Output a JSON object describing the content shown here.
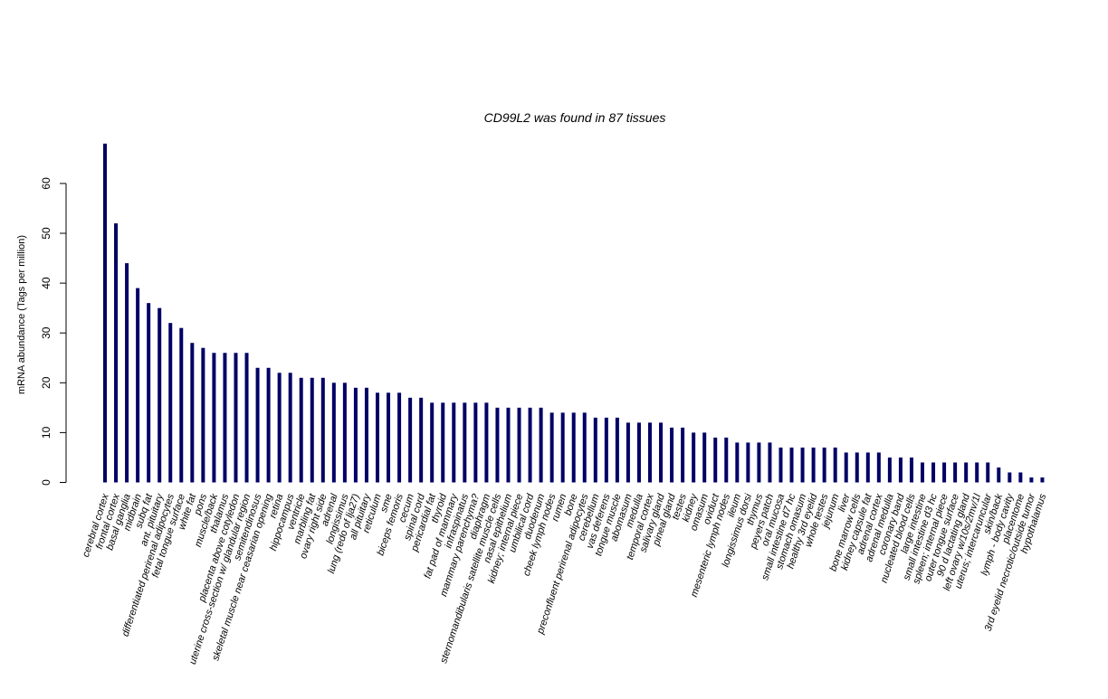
{
  "chart_data": {
    "type": "bar",
    "title": "CD99L2  was found in  87  tissues",
    "xlabel": "",
    "ylabel": "mRNA abundance (Tags per million)",
    "ylim": [
      0,
      68
    ],
    "yticks": [
      0,
      10,
      20,
      30,
      40,
      50,
      60
    ],
    "grid": false,
    "bar_color": "#000066",
    "categories": [
      "cerebral cortex",
      "frontal cortex",
      "basal ganglia",
      "midbrain",
      "subq fat",
      "ant. pituitary",
      "differentiated perirenal adipocytes",
      "fetal tongue surface",
      "white fat",
      "pons",
      "muscle/back",
      "thalamus",
      "placenta above cotyledon",
      "uterine cross-section w/ glandular region",
      "semitendinosus",
      "skeletal muscle near ceasarian opening",
      "retina",
      "hippocampus",
      "ventricle",
      "marbling fat",
      "ovary right side",
      "adrenal",
      "longissimus",
      "lung (redo of lja27)",
      "all pituitary",
      "reticulum",
      "sme",
      "biceps femoris",
      "cecum",
      "spinal cord",
      "pericardial fat",
      "thyroid",
      "fat pad of mammary",
      "infraspinatus",
      "mammary parenchyma?",
      "diaphragm",
      "sternomandibularis satellite muscle cells",
      "nasal epithelium",
      "kidney; internal piece",
      "umbilical cord",
      "duodenum",
      "cheek lymph nodes",
      "rumen",
      "bone",
      "preconfluent perirenal adipocytes",
      "cerebellum",
      "vas deferens",
      "tongue muscle",
      "abomasum",
      "medulla",
      "temporal cortex",
      "salivary gland",
      "pineal gland",
      "testes",
      "kidney",
      "omasum",
      "oviduct",
      "mesenteric lymph nodes",
      "ileum",
      "longissimus dorsi",
      "thymus",
      "peyers patch",
      "oral mucosa",
      "small intestine d7 hc",
      "stomach omasum",
      "healthy 3rd eyelid",
      "whole testes",
      "jejunum",
      "liver",
      "bone marrow cells",
      "kidney capsule fat",
      "adrenal cortex",
      "adrenal medulla",
      "coronary band",
      "nucleated blood cells",
      "large intestine",
      "small intestine d3 hc",
      "spleen; internal piece",
      "outer tongue surface",
      "90 d lactating gland",
      "left ovary w/10s/2mv/1l",
      "uterus; intercaruncular",
      "skin/back",
      "lymph - body cavity",
      "placentome",
      "3rd eyelid necrotic/outside tumor",
      "hypothalamus"
    ],
    "values": [
      68,
      52,
      44,
      39,
      36,
      35,
      32,
      31,
      28,
      27,
      26,
      26,
      26,
      26,
      23,
      23,
      22,
      22,
      21,
      21,
      21,
      20,
      20,
      19,
      19,
      18,
      18,
      18,
      17,
      17,
      16,
      16,
      16,
      16,
      16,
      16,
      15,
      15,
      15,
      15,
      15,
      14,
      14,
      14,
      14,
      13,
      13,
      13,
      12,
      12,
      12,
      12,
      11,
      11,
      10,
      10,
      9,
      9,
      8,
      8,
      8,
      8,
      7,
      7,
      7,
      7,
      7,
      7,
      6,
      6,
      6,
      6,
      5,
      5,
      5,
      4,
      4,
      4,
      4,
      4,
      4,
      4,
      3,
      2,
      2,
      1,
      1
    ]
  }
}
